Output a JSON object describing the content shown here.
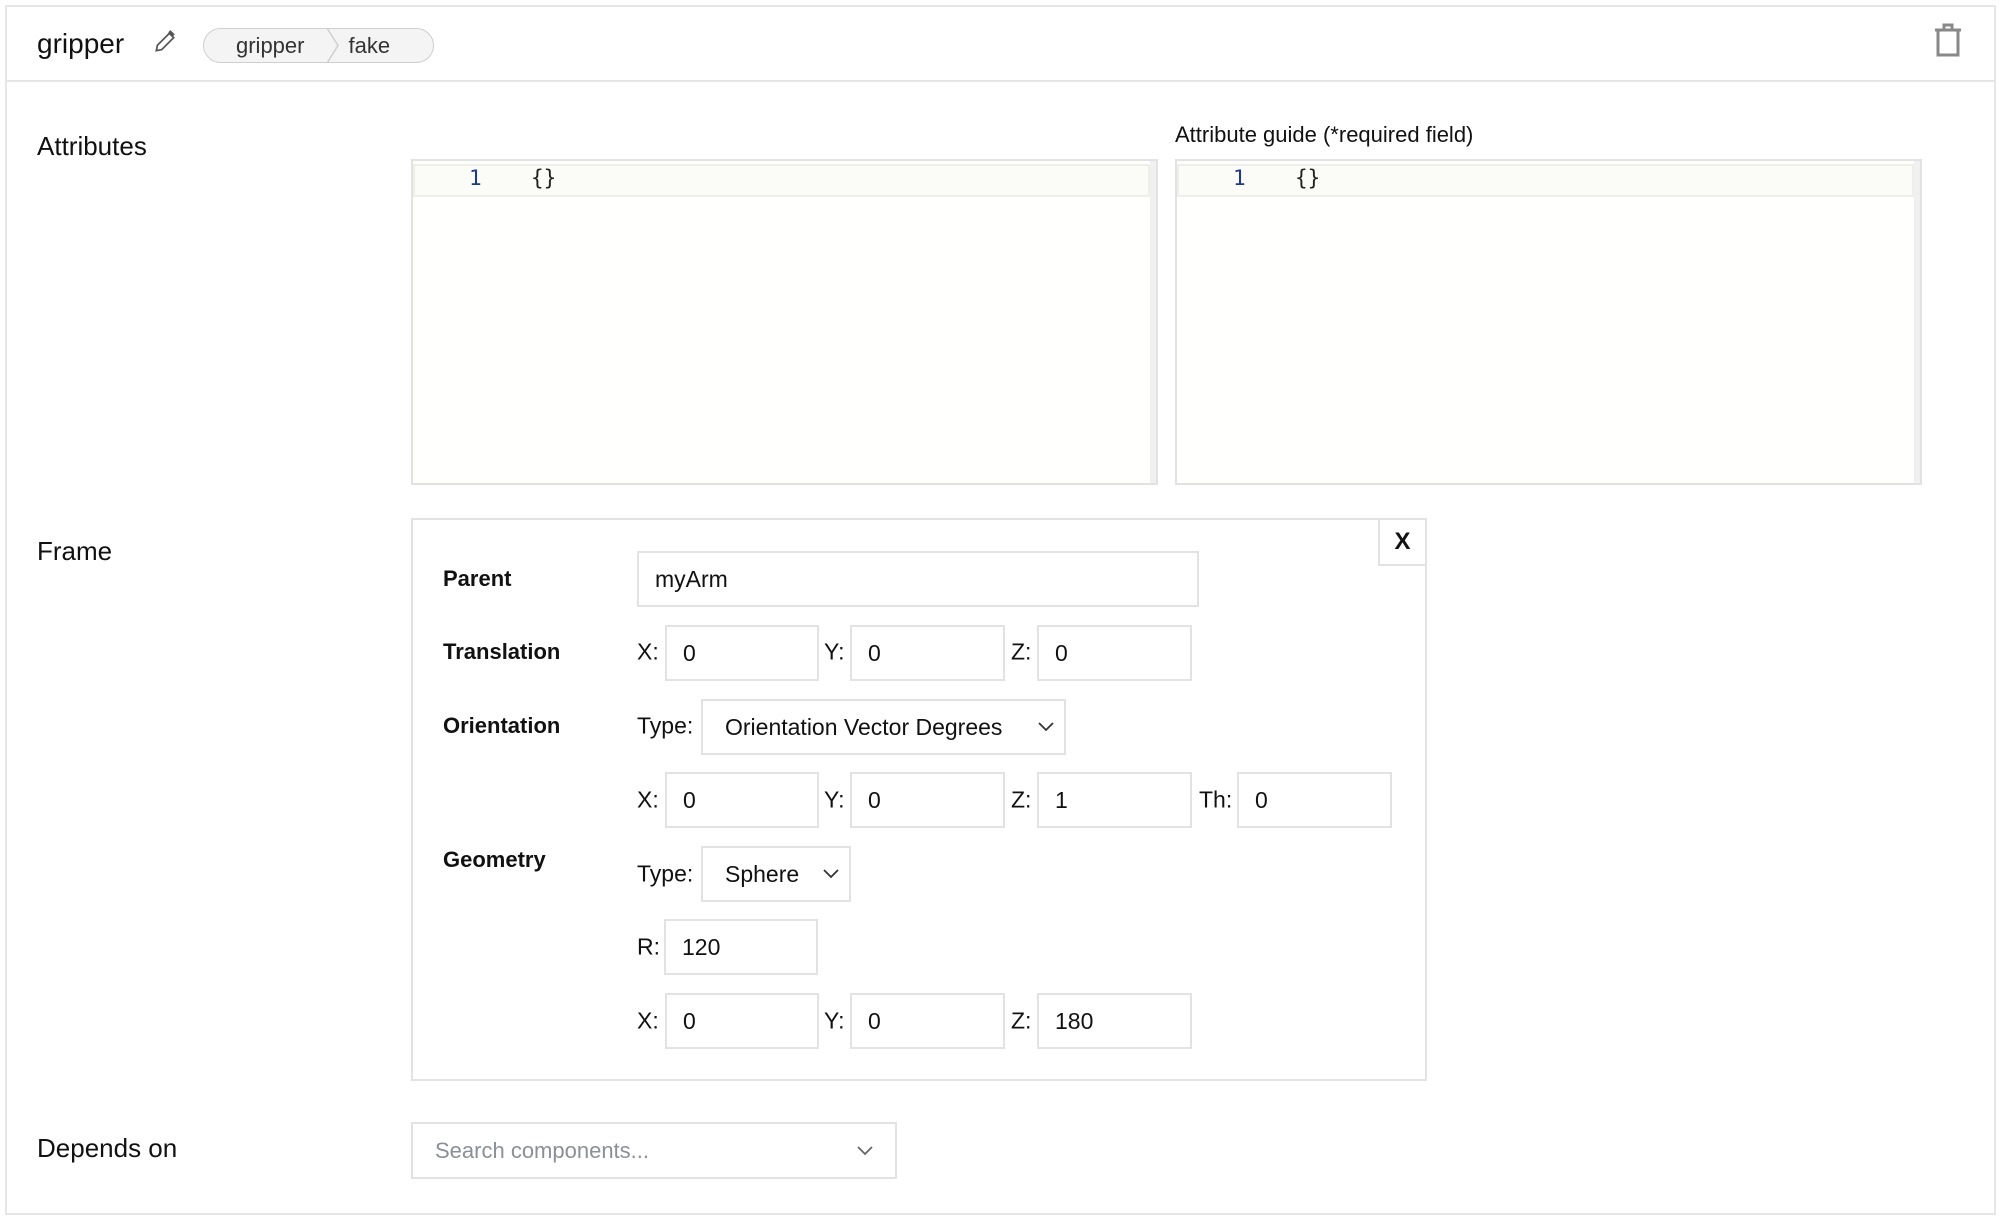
{
  "header": {
    "title": "gripper",
    "breadcrumb": [
      "gripper",
      "fake"
    ],
    "edit_icon": "pencil-icon",
    "delete_icon": "trash-icon"
  },
  "attributes": {
    "label": "Attributes",
    "editor": {
      "line_number": "1",
      "content": "{}"
    },
    "guide_label": "Attribute guide (*required field)",
    "guide_editor": {
      "line_number": "1",
      "content": "{}"
    }
  },
  "frame": {
    "label": "Frame",
    "close_label": "X",
    "parent": {
      "label": "Parent",
      "value": "myArm"
    },
    "translation": {
      "label": "Translation",
      "x_label": "X:",
      "x": "0",
      "y_label": "Y:",
      "y": "0",
      "z_label": "Z:",
      "z": "0"
    },
    "orientation": {
      "label": "Orientation",
      "type_label": "Type:",
      "type": "Orientation Vector Degrees",
      "x_label": "X:",
      "x": "0",
      "y_label": "Y:",
      "y": "0",
      "z_label": "Z:",
      "z": "1",
      "th_label": "Th:",
      "th": "0"
    },
    "geometry": {
      "label": "Geometry",
      "type_label": "Type:",
      "type": "Sphere",
      "r_label": "R:",
      "r": "120",
      "x_label": "X:",
      "x": "0",
      "y_label": "Y:",
      "y": "0",
      "z_label": "Z:",
      "z": "180"
    }
  },
  "depends_on": {
    "label": "Depends on",
    "placeholder": "Search components..."
  }
}
